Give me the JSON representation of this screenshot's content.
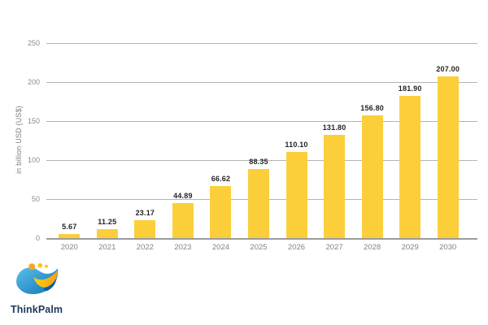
{
  "chart_data": {
    "type": "bar",
    "title": "",
    "xlabel": "",
    "ylabel": "in billion USD (US$)",
    "categories": [
      "2020",
      "2021",
      "2022",
      "2023",
      "2024",
      "2025",
      "2026",
      "2027",
      "2028",
      "2029",
      "2030"
    ],
    "values": [
      5.67,
      11.25,
      23.17,
      44.89,
      66.62,
      88.35,
      110.1,
      131.8,
      156.8,
      181.9,
      207.0
    ],
    "value_labels": [
      "5.67",
      "11.25",
      "23.17",
      "44.89",
      "66.62",
      "88.35",
      "110.10",
      "131.80",
      "156.80",
      "181.90",
      "207.00"
    ],
    "ylim": [
      0,
      250
    ],
    "yticks": [
      0,
      50,
      100,
      150,
      200,
      250
    ],
    "grid": true,
    "legend": false,
    "bar_color": "#fccf3a",
    "grid_color": "#b4b4b4",
    "axis_line_color": "#9a9a9a",
    "tick_label_color": "#8b8b8b",
    "value_label_color": "#242424"
  },
  "branding": {
    "logo_text": "ThinkPalm",
    "logo_text_color": "#1b3a57",
    "logo_blue_light": "#5bc0ea",
    "logo_blue_dark": "#1272b6",
    "logo_gold_light": "#ffd20a",
    "logo_gold_dark": "#f49c1c"
  }
}
